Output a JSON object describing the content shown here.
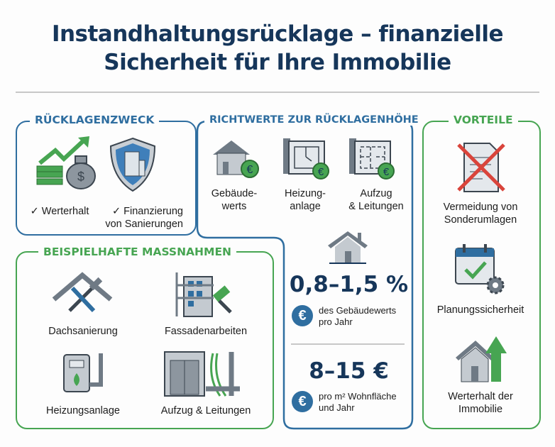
{
  "title": "Instandhaltungsrücklage – finanzielle\nSicherheit für Ihre Immobilie",
  "colors": {
    "navy": "#16365a",
    "blue": "#2f6ea0",
    "green": "#47a552"
  },
  "zweck": {
    "heading": "RÜCKLAGENZWECK",
    "items": [
      {
        "label": "✓ Werterhalt",
        "icon": "money-growth-icon"
      },
      {
        "label": "✓ Finanzierung\nvon Sanierungen",
        "icon": "shield-building-icon"
      }
    ]
  },
  "richtwerte": {
    "heading": "RICHTWERTE ZUR RÜCKLAGENHÖHE",
    "items": [
      {
        "label": "Gebäude-\nwerts",
        "icon": "house-euro-icon"
      },
      {
        "label": "Heizung-\nanlage",
        "icon": "blueprint-euro-icon"
      },
      {
        "label": "Aufzug\n& Leitungen",
        "icon": "blueprint-euro-icon"
      }
    ],
    "value1": "0,8–1,5 %",
    "value1_desc": "des Gebäudewerts\npro Jahr",
    "value2": "8–15 €",
    "value2_desc": "pro m² Wohnfläche\nund Jahr",
    "euro_symbol": "€"
  },
  "massnahmen": {
    "heading": "BEISPIELHAFTE MASSNAHMEN",
    "items": [
      {
        "label": "Dachsanierung",
        "icon": "roof-tools-icon"
      },
      {
        "label": "Fassadenarbeiten",
        "icon": "facade-scaffold-icon"
      },
      {
        "label": "Heizungsanlage",
        "icon": "boiler-icon"
      },
      {
        "label": "Aufzug & Leitungen",
        "icon": "elevator-pipes-icon"
      }
    ]
  },
  "vorteile": {
    "heading": "VORTEILE",
    "items": [
      {
        "label": "Vermeidung von\nSonderumlagen",
        "icon": "crossed-document-icon"
      },
      {
        "label": "Planungssicherheit",
        "icon": "calendar-check-icon"
      },
      {
        "label": "Werterhalt der\nImmobilie",
        "icon": "house-arrow-up-icon"
      }
    ]
  }
}
